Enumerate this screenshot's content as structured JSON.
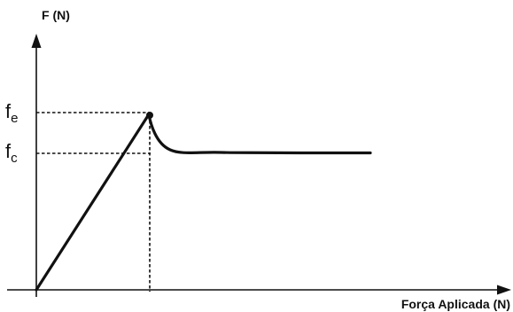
{
  "figure": {
    "y_axis_title": "F (N)",
    "x_axis_title": "Força Aplicada (N)",
    "levels": [
      {
        "base": "f",
        "sub": "e"
      },
      {
        "base": "f",
        "sub": "c"
      }
    ]
  },
  "colors": {
    "ink": "#111111",
    "background": "#ffffff"
  }
}
